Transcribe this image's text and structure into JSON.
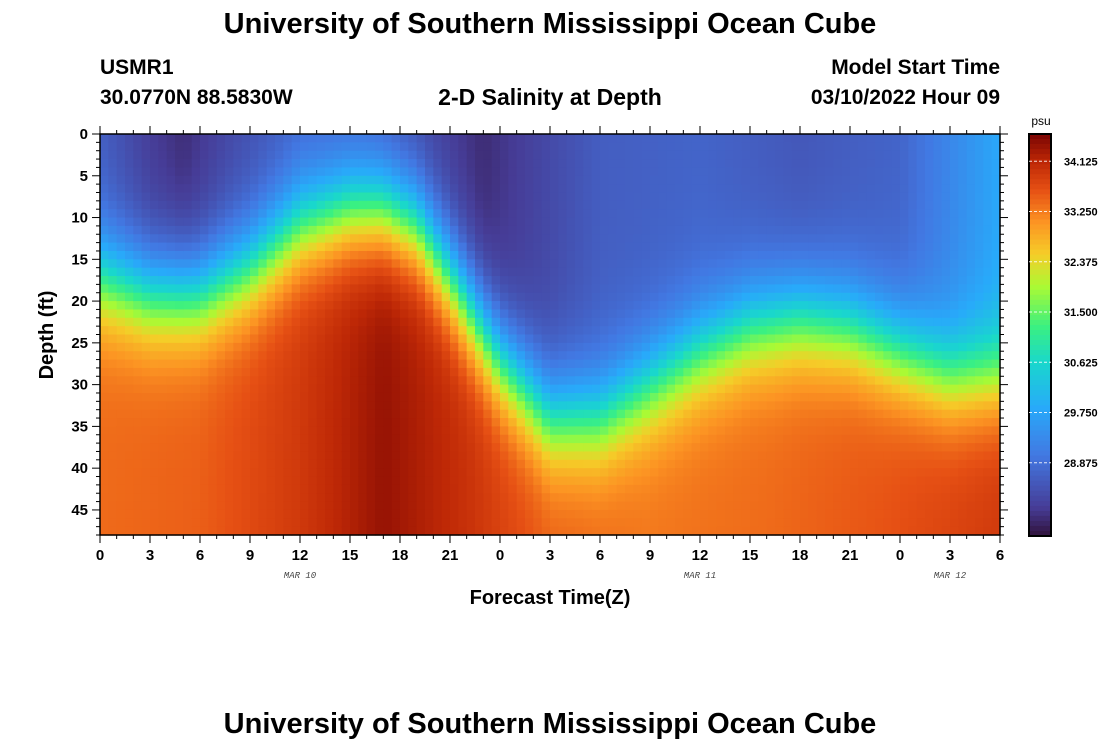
{
  "header": {
    "title": "University of Southern Mississippi Ocean Cube",
    "station": "USMR1",
    "coordinates": "30.0770N  88.5830W",
    "subtitle": "2-D Salinity at Depth",
    "model_start_label": "Model Start Time",
    "model_start_value": "03/10/2022 Hour 09"
  },
  "footer": {
    "title": "University of Southern Mississippi Ocean Cube"
  },
  "chart_data": {
    "type": "heatmap",
    "title": "2-D Salinity at Depth",
    "xlabel": "Forecast Time(Z)",
    "ylabel": "Depth (ft)",
    "x_range_hours": [
      0,
      54
    ],
    "y_range_ft": [
      0,
      48
    ],
    "x_tick_labels": [
      "0",
      "3",
      "6",
      "9",
      "12",
      "15",
      "18",
      "21",
      "0",
      "3",
      "6",
      "9",
      "12",
      "15",
      "18",
      "21",
      "0",
      "3",
      "6"
    ],
    "y_ticks": [
      0,
      5,
      10,
      15,
      20,
      25,
      30,
      35,
      40,
      45
    ],
    "date_labels": [
      {
        "text": "MAR 10",
        "hour": 12
      },
      {
        "text": "MAR 11",
        "hour": 36
      },
      {
        "text": "MAR 12",
        "hour": 51
      }
    ],
    "colorbar": {
      "unit": "psu",
      "min": 27.6,
      "max": 34.6,
      "ticks": [
        "34.125",
        "33.250",
        "32.375",
        "31.500",
        "30.625",
        "29.750",
        "28.875"
      ]
    },
    "halocline_depth_ft": {
      "hours": [
        0,
        3,
        6,
        9,
        12,
        15,
        17,
        19,
        21,
        24,
        27,
        30,
        33,
        36,
        39,
        42,
        45,
        48,
        51,
        54
      ],
      "values": [
        17,
        19,
        19,
        16,
        11,
        9,
        9,
        11,
        17,
        27,
        34,
        34,
        30,
        26,
        23,
        22,
        23,
        26,
        29,
        29
      ]
    },
    "surface_salinity_psu": {
      "hours": [
        0,
        3,
        5,
        8,
        12,
        16,
        19,
        23,
        26,
        30,
        36,
        42,
        48,
        54
      ],
      "values": [
        28.6,
        28.1,
        27.9,
        28.3,
        28.7,
        28.6,
        28.3,
        27.9,
        28.2,
        28.6,
        28.7,
        28.5,
        28.7,
        29.8
      ]
    },
    "bottom_salinity_psu": {
      "hours": [
        0,
        6,
        12,
        17,
        22,
        27,
        33,
        40,
        47,
        54
      ],
      "values": [
        33.4,
        33.5,
        33.9,
        34.4,
        34.0,
        33.5,
        33.3,
        33.4,
        33.6,
        33.9
      ]
    }
  }
}
